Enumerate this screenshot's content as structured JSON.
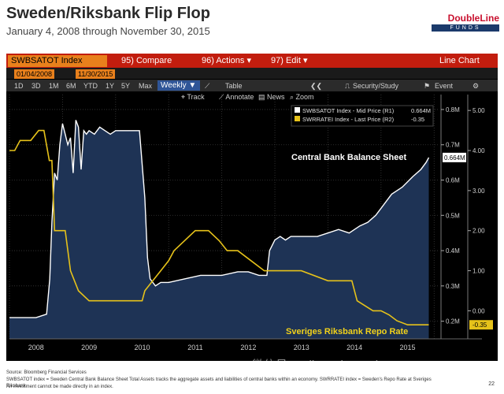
{
  "slide": {
    "title": "Sweden/Riksbank Flip Flop",
    "subtitle": "January 4, 2008 through November 30, 2015",
    "logo_name": "DoubleLine",
    "logo_sub": "FUNDS",
    "source": "Source: Bloomberg Financial Services",
    "footnote1": "SWBSATOT index = Sweden Central Bank Balance Sheet Total Assets tracks the aggregate assets and liabilities of central banks within an economy. SWRRATEI index = Sweden's Repo Rate at Sveriges Riksbank.",
    "footnote2": "An investment cannot be made directly in an index.",
    "page_number": "22",
    "watermark": "微信号: DailyMarketUpdate"
  },
  "terminal": {
    "ticker": "SWBSATOT Index",
    "menu": [
      "95) Compare",
      "96) Actions ▾",
      "97) Edit ▾"
    ],
    "chart_type_label": "Line Chart",
    "start_date": "01/04/2008",
    "end_date": "11/30/2015",
    "periods": [
      "1D",
      "3D",
      "1M",
      "6M",
      "YTD",
      "1Y",
      "5Y",
      "Max"
    ],
    "frequency": "Weekly ▼",
    "table_label": "Table",
    "security_label": "Security/Study",
    "event_label": "Event",
    "tools": [
      "Track",
      "Annotate",
      "News",
      "Zoom"
    ]
  },
  "chart_data": {
    "type": "line",
    "legend": [
      {
        "name": "SWBSATOT Index - Mid Price (R1)",
        "value": "0.664M",
        "color": "#ffffff"
      },
      {
        "name": "SWRRATEI Index - Last Price (R2)",
        "value": "-0.35",
        "color": "#e6c21a"
      }
    ],
    "annotations": [
      "Central Bank Balance Sheet",
      "Sveriges Riksbank Repo Rate"
    ],
    "last_value_labels": {
      "balance": "0.664M",
      "repo": "-0.35"
    },
    "x_ticks": [
      "2008",
      "2009",
      "2010",
      "2011",
      "2012",
      "2013",
      "2014",
      "2015"
    ],
    "x_range": [
      2008.0,
      2016.1
    ],
    "y_left_ticks": [
      "0.8M",
      "0.7M",
      "0.6M",
      "0.5M",
      "0.4M",
      "0.3M",
      "0.2M"
    ],
    "y_left_range": [
      0.15,
      0.82
    ],
    "y_right_ticks": [
      "5.00",
      "4.00",
      "3.00",
      "2.00",
      "1.00",
      "0.00"
    ],
    "y_right_range": [
      -0.7,
      5.2
    ],
    "series": [
      {
        "name": "SWBSATOT Index - Mid Price (R1)",
        "unit": "M",
        "x": [
          2008.0,
          2008.5,
          2008.7,
          2008.76,
          2008.8,
          2008.85,
          2008.9,
          2008.95,
          2009.0,
          2009.05,
          2009.1,
          2009.15,
          2009.2,
          2009.25,
          2009.3,
          2009.35,
          2009.4,
          2009.45,
          2009.5,
          2009.6,
          2009.7,
          2009.8,
          2009.9,
          2010.0,
          2010.1,
          2010.3,
          2010.45,
          2010.55,
          2010.6,
          2010.65,
          2010.75,
          2010.85,
          2011.0,
          2011.3,
          2011.6,
          2011.8,
          2012.0,
          2012.3,
          2012.5,
          2012.7,
          2012.85,
          2012.9,
          2013.0,
          2013.1,
          2013.2,
          2013.3,
          2013.4,
          2013.5,
          2013.8,
          2014.0,
          2014.2,
          2014.4,
          2014.6,
          2014.75,
          2014.9,
          2015.0,
          2015.2,
          2015.4,
          2015.6,
          2015.75,
          2015.85,
          2015.9
        ],
        "y": [
          0.21,
          0.21,
          0.22,
          0.32,
          0.48,
          0.62,
          0.6,
          0.7,
          0.76,
          0.73,
          0.7,
          0.72,
          0.62,
          0.77,
          0.75,
          0.63,
          0.74,
          0.73,
          0.74,
          0.73,
          0.75,
          0.74,
          0.73,
          0.74,
          0.74,
          0.74,
          0.74,
          0.55,
          0.38,
          0.32,
          0.3,
          0.31,
          0.31,
          0.32,
          0.33,
          0.33,
          0.33,
          0.34,
          0.34,
          0.33,
          0.33,
          0.4,
          0.43,
          0.44,
          0.43,
          0.44,
          0.44,
          0.44,
          0.44,
          0.45,
          0.46,
          0.45,
          0.47,
          0.48,
          0.5,
          0.52,
          0.56,
          0.58,
          0.61,
          0.63,
          0.65,
          0.664
        ]
      },
      {
        "name": "SWRRATEI Index - Last Price (R2)",
        "unit": "%",
        "x": [
          2008.0,
          2008.1,
          2008.2,
          2008.4,
          2008.55,
          2008.65,
          2008.75,
          2008.8,
          2008.85,
          2008.95,
          2009.05,
          2009.15,
          2009.3,
          2009.5,
          2010.0,
          2010.5,
          2010.55,
          2010.7,
          2010.85,
          2011.0,
          2011.1,
          2011.3,
          2011.5,
          2011.75,
          2011.95,
          2012.1,
          2012.3,
          2012.55,
          2012.8,
          2013.0,
          2013.5,
          2014.0,
          2014.45,
          2014.55,
          2014.85,
          2015.0,
          2015.15,
          2015.3,
          2015.5,
          2015.9
        ],
        "y": [
          4.0,
          4.0,
          4.25,
          4.25,
          4.5,
          4.5,
          3.75,
          3.75,
          2.0,
          2.0,
          2.0,
          1.0,
          0.5,
          0.25,
          0.25,
          0.25,
          0.5,
          0.75,
          1.0,
          1.25,
          1.5,
          1.75,
          2.0,
          2.0,
          1.75,
          1.5,
          1.5,
          1.25,
          1.0,
          1.0,
          1.0,
          0.75,
          0.75,
          0.25,
          0.0,
          0.0,
          -0.1,
          -0.25,
          -0.35,
          -0.35
        ]
      }
    ]
  }
}
